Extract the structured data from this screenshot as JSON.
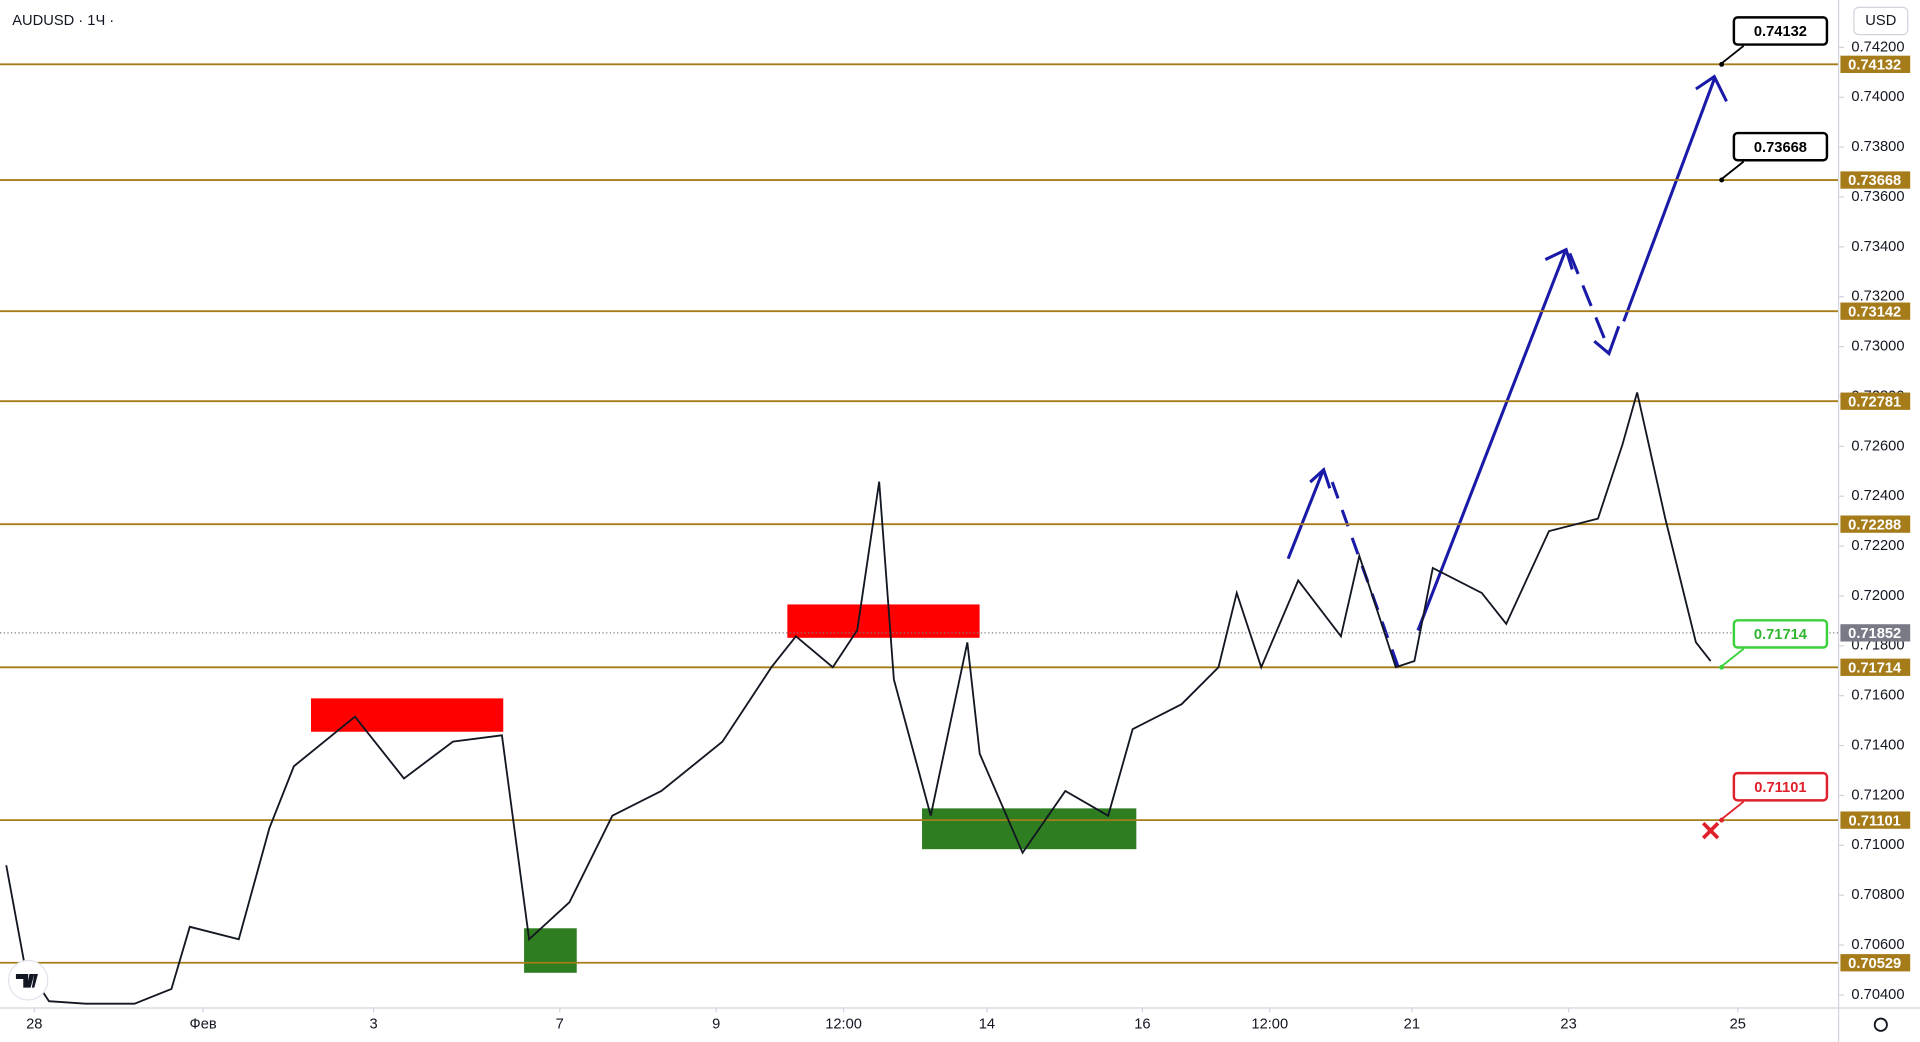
{
  "header": {
    "symbol": "AUDUSD · 1Ч ·",
    "currency": "USD"
  },
  "chart_data": {
    "type": "line",
    "color": "#131722",
    "x": [
      1.9,
      7.5,
      15.0,
      26.2,
      41.2,
      52.5,
      58.1,
      73.1,
      82.5,
      90.0,
      108.7,
      123.7,
      138.7,
      153.7,
      162.0,
      174.4,
      187.5,
      202.5,
      221.2,
      236.2,
      243.7,
      255.0,
      262.5,
      269.2,
      273.7,
      285.0,
      296.2,
      300.0,
      313.1,
      326.2,
      339.3,
      346.8,
      361.8,
      373.1,
      378.7,
      386.2,
      397.5,
      410.6,
      416.2,
      427.4,
      433.1,
      438.7,
      453.7,
      461.2,
      474.3,
      489.3,
      496.8,
      501.3,
      509.9,
      519.3,
      523.8
    ],
    "values": [
      0.7092,
      0.70524,
      0.70375,
      0.70365,
      0.70365,
      0.70424,
      0.70673,
      0.70623,
      0.71069,
      0.71317,
      0.71516,
      0.71268,
      0.71416,
      0.71441,
      0.70623,
      0.70772,
      0.71119,
      0.71218,
      0.71416,
      0.71714,
      0.71838,
      0.71714,
      0.71863,
      0.72458,
      0.71665,
      0.71119,
      0.71814,
      0.71367,
      0.7097,
      0.71218,
      0.71119,
      0.71466,
      0.71566,
      0.71714,
      0.72012,
      0.71714,
      0.72062,
      0.71838,
      0.72161,
      0.71714,
      0.71739,
      0.72112,
      0.72012,
      0.71888,
      0.7226,
      0.7231,
      0.72607,
      0.72816,
      0.7231,
      0.71814,
      0.71739
    ],
    "xlim": [
      0,
      562.4
    ],
    "xticks": [
      {
        "value": 10.5,
        "label": "28"
      },
      {
        "value": 62.2,
        "label": "Фев"
      },
      {
        "value": 114.4,
        "label": "3"
      },
      {
        "value": 171.4,
        "label": "7"
      },
      {
        "value": 219.3,
        "label": "9"
      },
      {
        "value": 258.3,
        "label": "12:00"
      },
      {
        "value": 302.2,
        "label": "14"
      },
      {
        "value": 349.8,
        "label": "16"
      },
      {
        "value": 388.8,
        "label": "12:00"
      },
      {
        "value": 432.3,
        "label": "21"
      },
      {
        "value": 480.3,
        "label": "23"
      },
      {
        "value": 532.1,
        "label": "25"
      }
    ],
    "ylim": [
      0.7035,
      0.7439
    ],
    "yticks": [
      {
        "value": 0.704,
        "label": "0.70400"
      },
      {
        "value": 0.706,
        "label": "0.70600"
      },
      {
        "value": 0.708,
        "label": "0.70800"
      },
      {
        "value": 0.71,
        "label": "0.71000"
      },
      {
        "value": 0.712,
        "label": "0.71200"
      },
      {
        "value": 0.714,
        "label": "0.71400"
      },
      {
        "value": 0.716,
        "label": "0.71600"
      },
      {
        "value": 0.718,
        "label": "0.71800"
      },
      {
        "value": 0.72,
        "label": "0.72000"
      },
      {
        "value": 0.722,
        "label": "0.72200"
      },
      {
        "value": 0.724,
        "label": "0.72400"
      },
      {
        "value": 0.726,
        "label": "0.72600"
      },
      {
        "value": 0.728,
        "label": "0.72800"
      },
      {
        "value": 0.73,
        "label": "0.73000"
      },
      {
        "value": 0.732,
        "label": "0.73200"
      },
      {
        "value": 0.734,
        "label": "0.73400"
      },
      {
        "value": 0.736,
        "label": "0.73600"
      },
      {
        "value": 0.738,
        "label": "0.73800"
      },
      {
        "value": 0.74,
        "label": "0.74000"
      },
      {
        "value": 0.742,
        "label": "0.74200"
      }
    ],
    "levels": [
      0.74132,
      0.73668,
      0.73142,
      0.72781,
      0.72288,
      0.71714,
      0.71101,
      0.70529
    ],
    "level_color": "#a67c1a",
    "last_price": 0.71852,
    "targets": [
      0.74132,
      0.73668,
      0.71714,
      0.71101
    ],
    "target_colors": [
      "#000000",
      "#000000",
      "#3bd13b",
      "#e0202a"
    ]
  }
}
